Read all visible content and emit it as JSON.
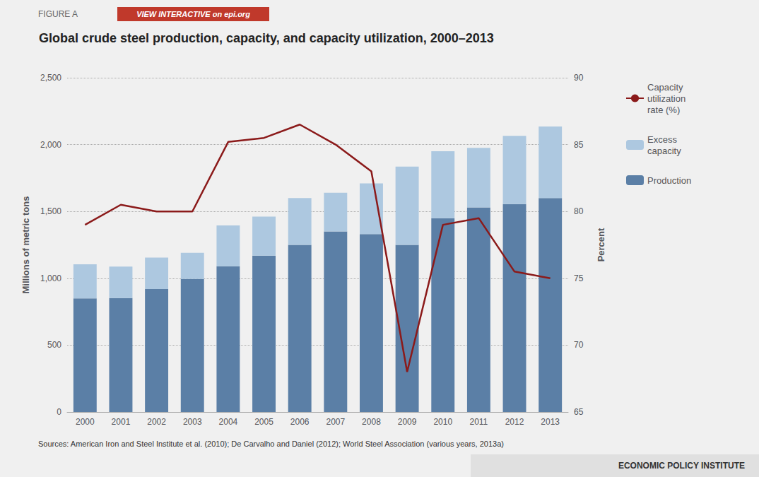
{
  "chart_data": {
    "type": "bar",
    "title": "Global crude steel production, capacity, and capacity utilization, 2000–2013",
    "annotations": [
      "FIGURE A",
      "VIEW INTERACTIVE on epi.org",
      "Sources: American Iron and Steel Institute et al. (2010); De Carvalho and Daniel (2012); World Steel Association (various years, 2013a)",
      "ECONOMIC POLICY INSTITUTE"
    ],
    "categories": [
      "2000",
      "2001",
      "2002",
      "2003",
      "2004",
      "2005",
      "2006",
      "2007",
      "2008",
      "2009",
      "2010",
      "2011",
      "2012",
      "2013"
    ],
    "stacked": true,
    "series": [
      {
        "name": "Production",
        "type": "bar",
        "color": "#5b7fa6",
        "values": [
          850,
          852,
          920,
          995,
          1090,
          1170,
          1250,
          1350,
          1330,
          1250,
          1450,
          1530,
          1555,
          1600
        ]
      },
      {
        "name": "Excess\ncapacity",
        "type": "bar",
        "color": "#adc8e0",
        "values": [
          255,
          235,
          235,
          195,
          305,
          292,
          350,
          290,
          380,
          585,
          500,
          445,
          510,
          535
        ]
      },
      {
        "name": "Capacity\nutilization\nrate (%)",
        "type": "line",
        "axis": "y2",
        "color": "#8b1a1a",
        "values": [
          79.0,
          80.5,
          80.0,
          80.0,
          85.2,
          85.5,
          86.5,
          85.0,
          83.0,
          68.0,
          79.0,
          79.5,
          75.5,
          75.0
        ]
      }
    ],
    "ylabel": "Millions of metric tons",
    "y2label": "Percent",
    "ylim": [
      0,
      2500
    ],
    "yticks": [
      0,
      500,
      {
        "value": 1000,
        "label": "1,000"
      },
      {
        "value": 1500,
        "label": "1,500"
      },
      {
        "value": 2000,
        "label": "2,000"
      },
      {
        "value": 2500,
        "label": "2,500"
      }
    ],
    "y2lim": [
      65,
      90
    ],
    "y2ticks": [
      65,
      70,
      75,
      80,
      85,
      90
    ],
    "grid": true,
    "legend": "right"
  }
}
